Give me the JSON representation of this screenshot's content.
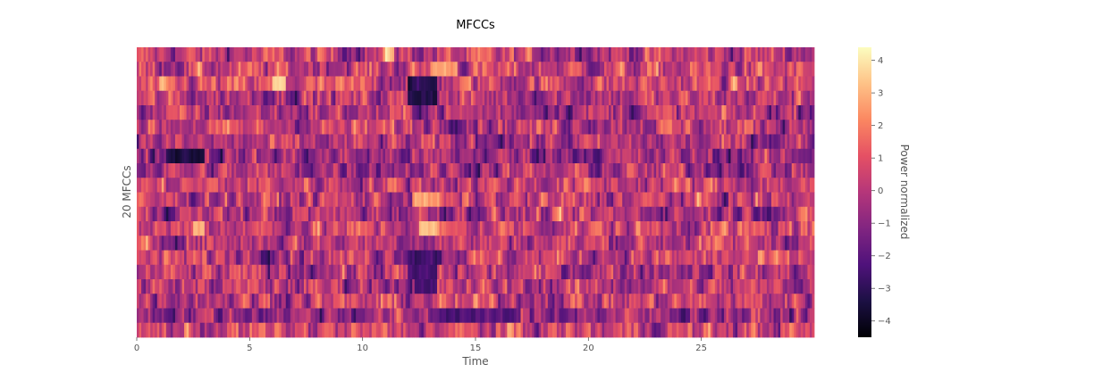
{
  "chart_data": {
    "type": "heatmap",
    "title": "MFCCs",
    "xlabel": "Time",
    "ylabel": "20 MFCCs",
    "xlim": [
      0,
      30
    ],
    "x_ticks": [
      0,
      5,
      10,
      15,
      20,
      25
    ],
    "x_tick_labels": [
      "0",
      "5",
      "10",
      "15",
      "20",
      "25"
    ],
    "n_coefficients": 20,
    "colormap": "magma",
    "colorbar": {
      "label": "Power normalized",
      "vmin": -4.5,
      "vmax": 4.4,
      "ticks": [
        4,
        3,
        2,
        1,
        0,
        -1,
        -2,
        -3,
        -4
      ],
      "tick_labels": [
        "4",
        "3",
        "2",
        "1",
        "0",
        "−1",
        "−2",
        "−3",
        "−4"
      ],
      "placement": "right"
    },
    "grid": false,
    "colors": {
      "magma_stops": [
        "#000004",
        "#1c1044",
        "#4f127b",
        "#812581",
        "#b5367a",
        "#e55064",
        "#fb8761",
        "#fec287",
        "#fcfdbf"
      ]
    },
    "time_columns": 300,
    "coefficient_profile": [
      0.1,
      0.3,
      0.5,
      0.0,
      -0.2,
      0.3,
      -0.4,
      -0.7,
      -0.3,
      0.4,
      0.1,
      -0.2,
      0.5,
      0.2,
      0.3,
      -0.1,
      0.0,
      0.3,
      -0.6,
      0.4
    ],
    "events": [
      {
        "row": 2,
        "t_start": 12.0,
        "t_end": 13.3,
        "level": -3.5
      },
      {
        "row": 3,
        "t_start": 12.0,
        "t_end": 13.3,
        "level": -3.0
      },
      {
        "row": 2,
        "t_start": 6.0,
        "t_end": 6.6,
        "level": 3.2
      },
      {
        "row": 10,
        "t_start": 12.2,
        "t_end": 13.4,
        "level": 2.5
      },
      {
        "row": 12,
        "t_start": 12.5,
        "t_end": 13.4,
        "level": 2.8
      },
      {
        "row": 12,
        "t_start": 2.5,
        "t_end": 3.0,
        "level": 3.0
      },
      {
        "row": 14,
        "t_start": 12.0,
        "t_end": 13.5,
        "level": -2.5
      },
      {
        "row": 15,
        "t_start": 12.0,
        "t_end": 13.3,
        "level": -2.6
      },
      {
        "row": 16,
        "t_start": 12.3,
        "t_end": 13.3,
        "level": -2.8
      },
      {
        "row": 18,
        "t_start": 13.4,
        "t_end": 17.0,
        "level": -2.0
      },
      {
        "row": 7,
        "t_start": 1.3,
        "t_end": 3.0,
        "level": -3.0
      },
      {
        "row": 0,
        "t_start": 11.0,
        "t_end": 11.4,
        "level": 3.4
      },
      {
        "row": 1,
        "t_start": 13.0,
        "t_end": 14.2,
        "level": 2.6
      }
    ]
  }
}
